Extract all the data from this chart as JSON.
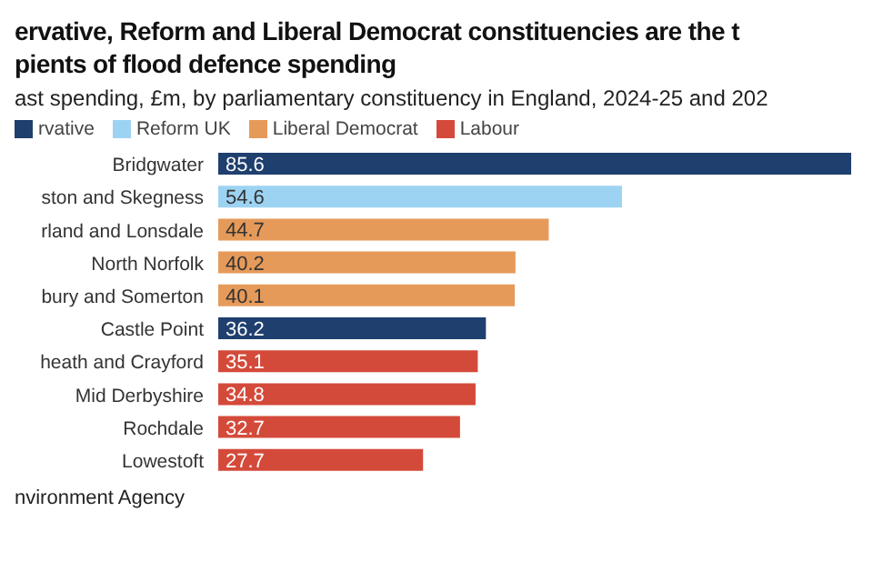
{
  "chart_data": {
    "type": "bar",
    "orientation": "horizontal",
    "stacked": true,
    "title": "ervative, Reform and Liberal Democrat constituencies are the t\npients of flood defence spending",
    "subtitle": "ast spending, £m, by parliamentary constituency in England, 2024-25 and 202",
    "categories": [
      "Bridgwater",
      "ston and Skegness",
      "rland and Lonsdale",
      "North Norfolk",
      "bury and Somerton",
      "Castle Point",
      "heath and Crayford",
      "Mid Derbyshire",
      "Rochdale",
      "Lowestoft"
    ],
    "series": [
      {
        "name": "rvative",
        "color": "#1f3f6e",
        "values": [
          85.6,
          null,
          null,
          null,
          null,
          36.2,
          null,
          null,
          null,
          null
        ]
      },
      {
        "name": "Reform UK",
        "color": "#9dd3f2",
        "values": [
          null,
          54.6,
          null,
          null,
          null,
          null,
          null,
          null,
          null,
          null
        ]
      },
      {
        "name": "Liberal Democrat",
        "color": "#e69a5a",
        "values": [
          null,
          null,
          44.7,
          40.2,
          40.1,
          null,
          null,
          null,
          null,
          null
        ]
      },
      {
        "name": "Labour",
        "color": "#d44a3a",
        "values": [
          null,
          null,
          null,
          null,
          null,
          null,
          35.1,
          34.8,
          32.7,
          27.7
        ]
      }
    ],
    "data_labels": true,
    "legend": "top left",
    "annotations": [
      "nvironment Agency"
    ]
  }
}
